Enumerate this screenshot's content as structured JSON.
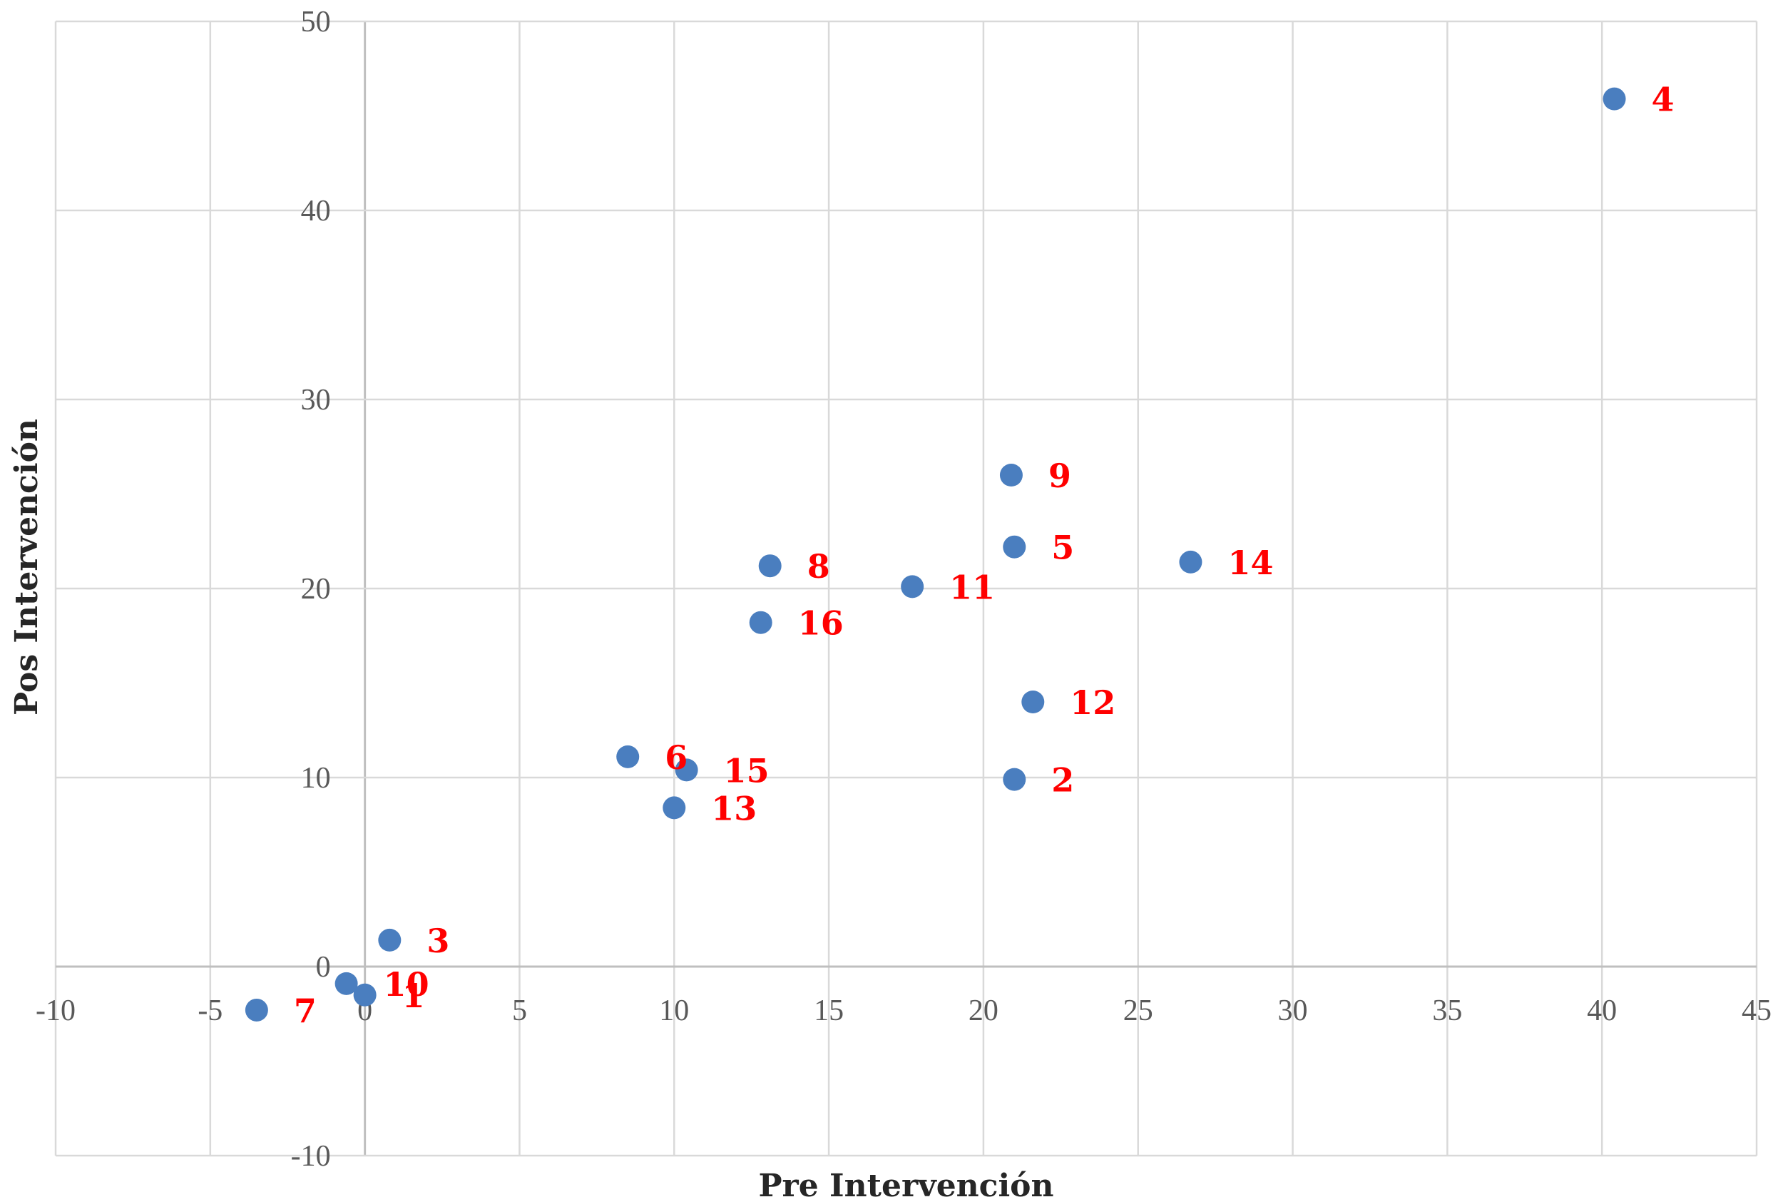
{
  "colors": {
    "point": "#4a7ebf",
    "label": "#ff0000",
    "grid": "#d9d9d9"
  },
  "chart_data": {
    "type": "scatter",
    "xlabel": "Pre Intervención",
    "ylabel": "Pos Intervención",
    "xlim": [
      -10,
      45
    ],
    "ylim": [
      -10,
      50
    ],
    "xticks": [
      -10,
      -5,
      0,
      5,
      10,
      15,
      20,
      25,
      30,
      35,
      40,
      45
    ],
    "yticks": [
      -10,
      0,
      10,
      20,
      30,
      40,
      50
    ],
    "grid": true,
    "legend": "none",
    "points": [
      {
        "label": "1",
        "x": 0.0,
        "y": -1.5
      },
      {
        "label": "2",
        "x": 21.0,
        "y": 9.9
      },
      {
        "label": "3",
        "x": 0.8,
        "y": 1.4
      },
      {
        "label": "4",
        "x": 40.4,
        "y": 45.9
      },
      {
        "label": "5",
        "x": 21.0,
        "y": 22.2
      },
      {
        "label": "6",
        "x": 8.5,
        "y": 11.1
      },
      {
        "label": "7",
        "x": -3.5,
        "y": -2.3
      },
      {
        "label": "8",
        "x": 13.1,
        "y": 21.2
      },
      {
        "label": "9",
        "x": 20.9,
        "y": 26.0
      },
      {
        "label": "10",
        "x": -0.6,
        "y": -0.9
      },
      {
        "label": "11",
        "x": 17.7,
        "y": 20.1
      },
      {
        "label": "12",
        "x": 21.6,
        "y": 14.0
      },
      {
        "label": "13",
        "x": 10.0,
        "y": 8.4
      },
      {
        "label": "14",
        "x": 26.7,
        "y": 21.4
      },
      {
        "label": "15",
        "x": 10.4,
        "y": 10.4
      },
      {
        "label": "16",
        "x": 12.8,
        "y": 18.2
      }
    ]
  }
}
